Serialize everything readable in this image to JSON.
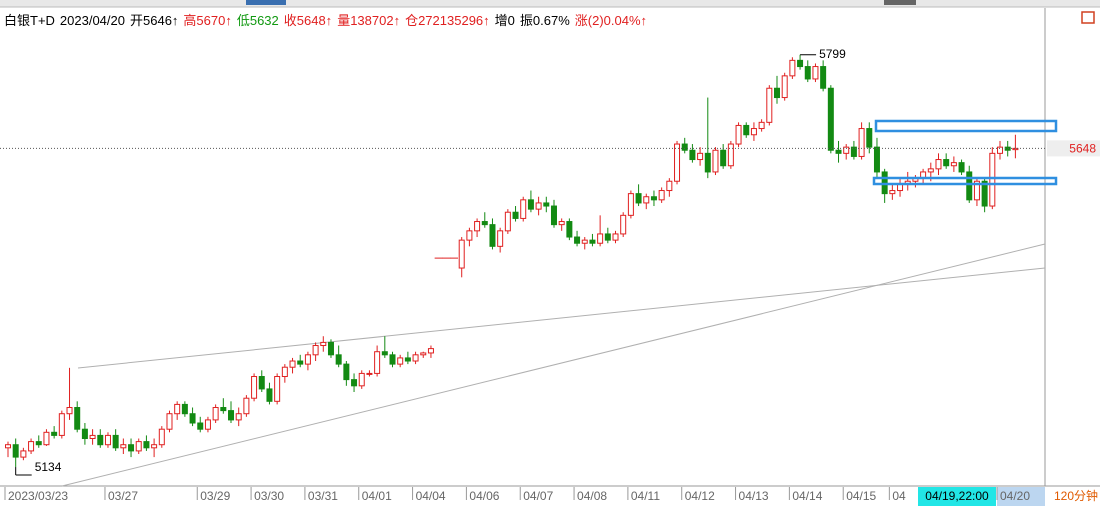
{
  "chart_data": {
    "type": "candlestick",
    "header_items": [
      {
        "text": "白银T+D",
        "color": "#000000"
      },
      {
        "text": "2023/04/20",
        "color": "#000000"
      },
      {
        "text": "开5646↑",
        "color": "#000000"
      },
      {
        "text": "高5670↑",
        "color": "#e02020"
      },
      {
        "text": "低5632",
        "color": "#119911"
      },
      {
        "text": "收5648↑",
        "color": "#e02020"
      },
      {
        "text": "量138702↑",
        "color": "#e02020"
      },
      {
        "text": "仓272135296↑",
        "color": "#e02020"
      },
      {
        "text": "增0",
        "color": "#000000"
      },
      {
        "text": "振0.67%",
        "color": "#000000"
      },
      {
        "text": "涨(2)0.04%↑",
        "color": "#e02020"
      }
    ],
    "up_color": "#e02020",
    "down_color": "#138a13",
    "ylim": [
      5105,
      5868
    ],
    "last_price": 5648,
    "high_label": 5799,
    "low_label": 5134,
    "cursor_label": "04/19,22:00",
    "period": "120分钟",
    "categories": [
      "2023/03/23",
      null,
      null,
      null,
      null,
      null,
      null,
      null,
      null,
      null,
      null,
      null,
      null,
      "03/27",
      null,
      null,
      null,
      null,
      null,
      null,
      null,
      null,
      null,
      null,
      null,
      "03/29",
      null,
      null,
      null,
      null,
      null,
      null,
      "03/30",
      null,
      null,
      null,
      null,
      null,
      null,
      "03/31",
      null,
      null,
      null,
      null,
      null,
      null,
      "04/01",
      null,
      null,
      null,
      null,
      null,
      null,
      "04/04",
      null,
      null,
      null,
      null,
      null,
      null,
      "04/06",
      null,
      null,
      null,
      null,
      null,
      null,
      "04/07",
      null,
      null,
      null,
      null,
      null,
      null,
      "04/08",
      null,
      null,
      null,
      null,
      null,
      null,
      "04/11",
      null,
      null,
      null,
      null,
      null,
      null,
      "04/12",
      null,
      null,
      null,
      null,
      null,
      null,
      "04/13",
      null,
      null,
      null,
      null,
      null,
      null,
      "04/14",
      null,
      null,
      null,
      null,
      null,
      null,
      "04/15",
      null,
      null,
      null,
      null,
      null,
      "04",
      null,
      null,
      null,
      null,
      null,
      null,
      null,
      null,
      null,
      null,
      null,
      null,
      null,
      "04/20",
      null,
      null
    ],
    "candles": [
      [
        5165,
        5175,
        5150,
        5170
      ],
      [
        5170,
        5180,
        5134,
        5150
      ],
      [
        5150,
        5165,
        5145,
        5160
      ],
      [
        5160,
        5180,
        5155,
        5175
      ],
      [
        5175,
        5185,
        5165,
        5170
      ],
      [
        5170,
        5195,
        5168,
        5190
      ],
      [
        5190,
        5200,
        5180,
        5185
      ],
      [
        5185,
        5225,
        5180,
        5220
      ],
      [
        5220,
        5294,
        5210,
        5230
      ],
      [
        5230,
        5240,
        5190,
        5195
      ],
      [
        5195,
        5205,
        5170,
        5180
      ],
      [
        5180,
        5195,
        5170,
        5185
      ],
      [
        5185,
        5195,
        5165,
        5170
      ],
      [
        5170,
        5190,
        5165,
        5185
      ],
      [
        5185,
        5195,
        5160,
        5165
      ],
      [
        5165,
        5180,
        5155,
        5170
      ],
      [
        5170,
        5180,
        5150,
        5160
      ],
      [
        5160,
        5180,
        5155,
        5175
      ],
      [
        5175,
        5185,
        5160,
        5165
      ],
      [
        5165,
        5180,
        5150,
        5170
      ],
      [
        5170,
        5200,
        5165,
        5195
      ],
      [
        5195,
        5225,
        5190,
        5220
      ],
      [
        5220,
        5240,
        5210,
        5235
      ],
      [
        5235,
        5240,
        5215,
        5220
      ],
      [
        5220,
        5230,
        5200,
        5205
      ],
      [
        5205,
        5215,
        5190,
        5195
      ],
      [
        5195,
        5215,
        5190,
        5210
      ],
      [
        5210,
        5235,
        5205,
        5230
      ],
      [
        5230,
        5245,
        5220,
        5225
      ],
      [
        5225,
        5240,
        5205,
        5210
      ],
      [
        5210,
        5230,
        5200,
        5220
      ],
      [
        5220,
        5250,
        5215,
        5245
      ],
      [
        5245,
        5285,
        5240,
        5280
      ],
      [
        5280,
        5290,
        5255,
        5260
      ],
      [
        5260,
        5270,
        5235,
        5240
      ],
      [
        5240,
        5285,
        5235,
        5280
      ],
      [
        5280,
        5300,
        5270,
        5295
      ],
      [
        5295,
        5310,
        5285,
        5305
      ],
      [
        5305,
        5315,
        5295,
        5300
      ],
      [
        5300,
        5320,
        5290,
        5315
      ],
      [
        5315,
        5335,
        5305,
        5330
      ],
      [
        5330,
        5345,
        5320,
        5335
      ],
      [
        5335,
        5340,
        5310,
        5315
      ],
      [
        5315,
        5330,
        5295,
        5300
      ],
      [
        5300,
        5305,
        5265,
        5275
      ],
      [
        5275,
        5285,
        5255,
        5265
      ],
      [
        5265,
        5290,
        5260,
        5285
      ],
      [
        5285,
        5290,
        5280,
        5285
      ],
      [
        5285,
        5330,
        5280,
        5320
      ],
      [
        5320,
        5345,
        5310,
        5315
      ],
      [
        5315,
        5320,
        5295,
        5300
      ],
      [
        5300,
        5315,
        5295,
        5310
      ],
      [
        5310,
        5320,
        5300,
        5305
      ],
      [
        5305,
        5320,
        5300,
        5315
      ],
      [
        5315,
        5320,
        5310,
        5318
      ],
      [
        5318,
        5330,
        5310,
        5325
      ],
      [
        5471,
        5471,
        5471,
        5471
      ],
      [
        5471,
        5471,
        5471,
        5471
      ],
      [
        5471,
        5471,
        5471,
        5471
      ],
      [
        5455,
        5505,
        5440,
        5500
      ],
      [
        5500,
        5520,
        5490,
        5515
      ],
      [
        5515,
        5535,
        5505,
        5530
      ],
      [
        5530,
        5545,
        5520,
        5525
      ],
      [
        5525,
        5535,
        5485,
        5490
      ],
      [
        5490,
        5520,
        5480,
        5515
      ],
      [
        5515,
        5550,
        5510,
        5545
      ],
      [
        5545,
        5555,
        5530,
        5535
      ],
      [
        5535,
        5570,
        5530,
        5565
      ],
      [
        5565,
        5580,
        5545,
        5550
      ],
      [
        5550,
        5570,
        5540,
        5560
      ],
      [
        5560,
        5570,
        5545,
        5555
      ],
      [
        5555,
        5565,
        5520,
        5525
      ],
      [
        5525,
        5535,
        5515,
        5530
      ],
      [
        5530,
        5535,
        5500,
        5505
      ],
      [
        5505,
        5515,
        5490,
        5495
      ],
      [
        5495,
        5505,
        5485,
        5500
      ],
      [
        5500,
        5510,
        5490,
        5495
      ],
      [
        5495,
        5540,
        5490,
        5510
      ],
      [
        5510,
        5520,
        5495,
        5500
      ],
      [
        5500,
        5515,
        5495,
        5510
      ],
      [
        5510,
        5545,
        5505,
        5540
      ],
      [
        5540,
        5580,
        5535,
        5575
      ],
      [
        5575,
        5590,
        5555,
        5560
      ],
      [
        5560,
        5575,
        5550,
        5570
      ],
      [
        5570,
        5580,
        5555,
        5565
      ],
      [
        5565,
        5585,
        5560,
        5580
      ],
      [
        5580,
        5600,
        5570,
        5595
      ],
      [
        5595,
        5660,
        5590,
        5655
      ],
      [
        5655,
        5665,
        5640,
        5645
      ],
      [
        5645,
        5655,
        5625,
        5630
      ],
      [
        5630,
        5650,
        5620,
        5640
      ],
      [
        5640,
        5730,
        5600,
        5610
      ],
      [
        5610,
        5650,
        5605,
        5645
      ],
      [
        5645,
        5655,
        5615,
        5620
      ],
      [
        5620,
        5660,
        5615,
        5655
      ],
      [
        5655,
        5690,
        5650,
        5685
      ],
      [
        5685,
        5690,
        5665,
        5670
      ],
      [
        5670,
        5690,
        5660,
        5680
      ],
      [
        5680,
        5695,
        5675,
        5690
      ],
      [
        5690,
        5750,
        5685,
        5745
      ],
      [
        5745,
        5765,
        5720,
        5730
      ],
      [
        5730,
        5770,
        5725,
        5765
      ],
      [
        5765,
        5795,
        5760,
        5790
      ],
      [
        5790,
        5799,
        5775,
        5780
      ],
      [
        5780,
        5790,
        5755,
        5760
      ],
      [
        5760,
        5785,
        5755,
        5780
      ],
      [
        5780,
        5790,
        5740,
        5745
      ],
      [
        5745,
        5750,
        5640,
        5645
      ],
      [
        5645,
        5660,
        5625,
        5640
      ],
      [
        5640,
        5655,
        5630,
        5650
      ],
      [
        5650,
        5660,
        5630,
        5635
      ],
      [
        5635,
        5690,
        5630,
        5680
      ],
      [
        5680,
        5690,
        5640,
        5650
      ],
      [
        5650,
        5665,
        5600,
        5610
      ],
      [
        5610,
        5615,
        5560,
        5575
      ],
      [
        5575,
        5590,
        5565,
        5580
      ],
      [
        5580,
        5600,
        5570,
        5590
      ],
      [
        5590,
        5610,
        5580,
        5595
      ],
      [
        5595,
        5605,
        5585,
        5600
      ],
      [
        5600,
        5615,
        5590,
        5610
      ],
      [
        5610,
        5625,
        5595,
        5615
      ],
      [
        5615,
        5640,
        5605,
        5630
      ],
      [
        5630,
        5640,
        5615,
        5620
      ],
      [
        5620,
        5635,
        5610,
        5625
      ],
      [
        5625,
        5630,
        5605,
        5610
      ],
      [
        5610,
        5620,
        5560,
        5565
      ],
      [
        5565,
        5600,
        5555,
        5595
      ],
      [
        5595,
        5600,
        5545,
        5555
      ],
      [
        5555,
        5650,
        5550,
        5640
      ],
      [
        5640,
        5660,
        5630,
        5650
      ],
      [
        5650,
        5660,
        5635,
        5645
      ],
      [
        5646,
        5670,
        5632,
        5648
      ]
    ]
  }
}
